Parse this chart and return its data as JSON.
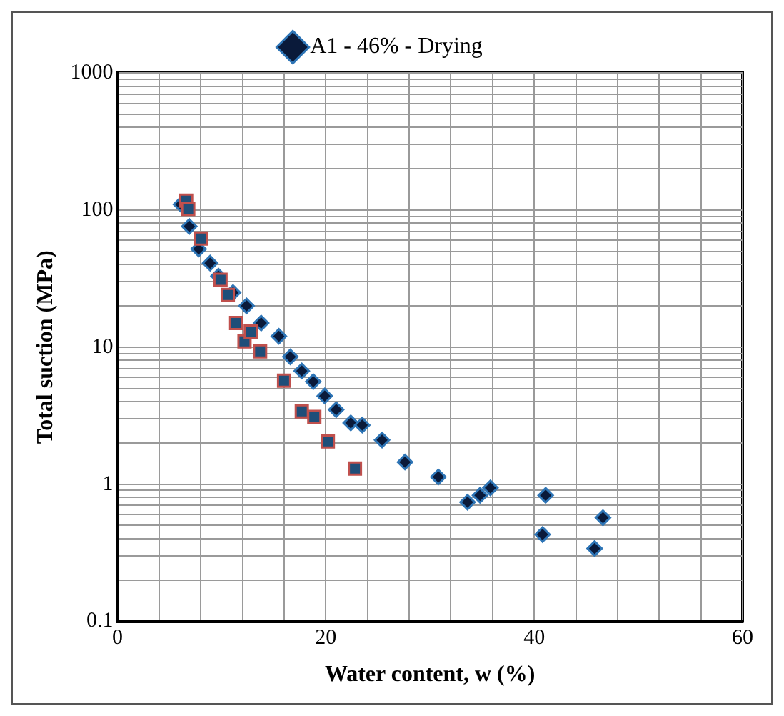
{
  "chart_data": {
    "type": "scatter",
    "xlabel": "Water content, w (%)",
    "ylabel": "Total suction (MPa)",
    "log": "y",
    "grid": true,
    "legend": "top",
    "xlim": [
      0,
      60
    ],
    "xticks": [
      0,
      {
        "value": 4,
        "label": null
      },
      {
        "value": 8,
        "label": null
      },
      {
        "value": 12,
        "label": null
      },
      {
        "value": 16,
        "label": null
      },
      20,
      {
        "value": 24,
        "label": null
      },
      {
        "value": 28,
        "label": null
      },
      {
        "value": 32,
        "label": null
      },
      {
        "value": 36,
        "label": null
      },
      40,
      {
        "value": 44,
        "label": null
      },
      {
        "value": 48,
        "label": null
      },
      {
        "value": 52,
        "label": null
      },
      {
        "value": 56,
        "label": null
      },
      60
    ],
    "ylim": [
      0.1,
      1000
    ],
    "yticks": [
      0.1,
      {
        "value": 0.2,
        "label": null
      },
      {
        "value": 0.3,
        "label": null
      },
      {
        "value": 0.4,
        "label": null
      },
      {
        "value": 0.5,
        "label": null
      },
      {
        "value": 0.6,
        "label": null
      },
      {
        "value": 0.7,
        "label": null
      },
      {
        "value": 0.8,
        "label": null
      },
      {
        "value": 0.9,
        "label": null
      },
      1,
      {
        "value": 2,
        "label": null
      },
      {
        "value": 3,
        "label": null
      },
      {
        "value": 4,
        "label": null
      },
      {
        "value": 5,
        "label": null
      },
      {
        "value": 6,
        "label": null
      },
      {
        "value": 7,
        "label": null
      },
      {
        "value": 8,
        "label": null
      },
      {
        "value": 9,
        "label": null
      },
      10,
      {
        "value": 20,
        "label": null
      },
      {
        "value": 30,
        "label": null
      },
      {
        "value": 40,
        "label": null
      },
      {
        "value": 50,
        "label": null
      },
      {
        "value": 60,
        "label": null
      },
      {
        "value": 70,
        "label": null
      },
      {
        "value": 80,
        "label": null
      },
      {
        "value": 90,
        "label": null
      },
      100,
      {
        "value": 200,
        "label": null
      },
      {
        "value": 300,
        "label": null
      },
      {
        "value": 400,
        "label": null
      },
      {
        "value": 500,
        "label": null
      },
      {
        "value": 600,
        "label": null
      },
      {
        "value": 700,
        "label": null
      },
      {
        "value": 800,
        "label": null
      },
      {
        "value": 900,
        "label": null
      },
      1000
    ],
    "series": [
      {
        "name": "A1 - 46% - Drying",
        "color": "#0a1a3a",
        "marker": "diamond",
        "x": [
          6.1,
          6.9,
          7.8,
          8.9,
          9.7,
          11.1,
          12.4,
          13.8,
          15.5,
          16.6,
          17.7,
          18.8,
          19.9,
          21.0,
          22.4,
          23.5,
          25.4,
          27.6,
          30.8,
          33.6,
          34.8,
          35.8,
          41.1,
          40.8,
          46.6,
          45.8
        ],
        "values": [
          110,
          76,
          52,
          41,
          33,
          25,
          20,
          15,
          12,
          8.5,
          6.7,
          5.6,
          4.4,
          3.5,
          2.8,
          2.7,
          2.1,
          1.45,
          1.13,
          0.74,
          0.83,
          0.94,
          0.83,
          0.43,
          0.57,
          0.34
        ]
      },
      {
        "color": "#1f4e79",
        "marker": "square",
        "x": [
          6.6,
          6.8,
          8.0,
          9.9,
          10.6,
          11.4,
          12.2,
          12.8,
          13.7,
          16.0,
          17.7,
          18.9,
          20.2,
          22.8
        ],
        "values": [
          117,
          102,
          62,
          31,
          24,
          15,
          11,
          13,
          9.3,
          5.7,
          3.4,
          3.1,
          2.05,
          1.3
        ]
      }
    ]
  }
}
